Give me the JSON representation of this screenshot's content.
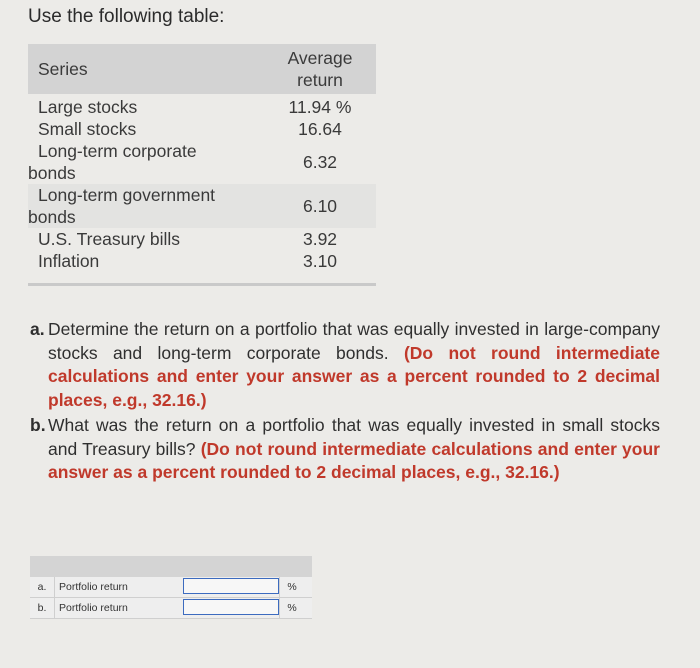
{
  "intro": "Use the following table:",
  "table": {
    "col_series": "Series",
    "col_return_line1": "Average",
    "col_return_line2": "return",
    "rows": [
      {
        "series": "Large stocks",
        "value": "11.94 %"
      },
      {
        "series": "Small stocks",
        "value": "16.64"
      },
      {
        "series_line1": "Long-term corporate",
        "series_line2": "bonds",
        "value": "6.32"
      },
      {
        "series_line1": "Long-term government",
        "series_line2": "bonds",
        "value": "6.10"
      },
      {
        "series": "U.S. Treasury bills",
        "value": "3.92"
      },
      {
        "series": "Inflation",
        "value": "3.10"
      }
    ]
  },
  "questions": [
    {
      "label": "a.",
      "text": "Determine the return on a portfolio that was equally invested in large-company stocks and long-term corporate bonds.",
      "note": "(Do not round intermediate calculations and enter your answer as a percent rounded to 2 decimal places, e.g., 32.16.)"
    },
    {
      "label": "b.",
      "text": "What was the return on a portfolio that was equally invested in small stocks and Treasury bills?",
      "note": "(Do not round intermediate calculations and enter your answer as a percent rounded to 2 decimal places, e.g., 32.16.)"
    }
  ],
  "answers": [
    {
      "code": "a.",
      "label": "Portfolio return",
      "value": "",
      "unit": "%"
    },
    {
      "code": "b.",
      "label": "Portfolio return",
      "value": "",
      "unit": "%"
    }
  ]
}
